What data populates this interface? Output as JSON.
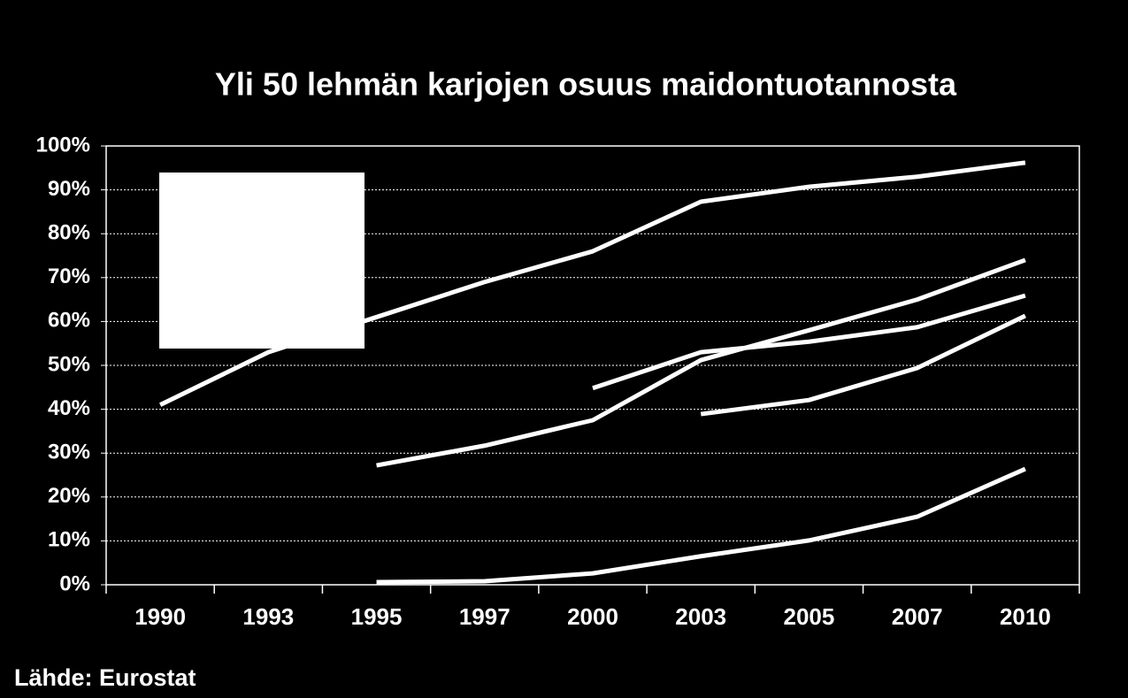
{
  "chart_data": {
    "type": "line",
    "title": "Yli 50 lehmän karjojen osuus maidontuotannosta",
    "source": "Lähde: Eurostat",
    "categories": [
      "1990",
      "1993",
      "1995",
      "1997",
      "2000",
      "2003",
      "2005",
      "2007",
      "2010"
    ],
    "series": [
      {
        "color": "#ffffff",
        "values": [
          41,
          53,
          61,
          69,
          76,
          87.3,
          90.7,
          93,
          96.2
        ]
      },
      {
        "color": "#ffffff",
        "values": [
          null,
          null,
          27.2,
          31.7,
          37.5,
          51.2,
          58,
          65,
          74
        ]
      },
      {
        "color": "#ffffff",
        "values": [
          null,
          null,
          null,
          null,
          44.8,
          53,
          55.4,
          58.7,
          65.9
        ]
      },
      {
        "color": "#ffffff",
        "values": [
          null,
          null,
          null,
          null,
          null,
          38.9,
          42.1,
          49.4,
          61.3
        ]
      },
      {
        "color": "#ffffff",
        "values": [
          null,
          null,
          0.6,
          0.8,
          2.6,
          6.5,
          10.1,
          15.5,
          26.4
        ]
      }
    ],
    "ylim": [
      0,
      100
    ],
    "yticks": [
      {
        "value": 0,
        "label": "0%"
      },
      {
        "value": 10,
        "label": "10%"
      },
      {
        "value": 20,
        "label": "20%"
      },
      {
        "value": 30,
        "label": "30%"
      },
      {
        "value": 40,
        "label": "40%"
      },
      {
        "value": 50,
        "label": "50%"
      },
      {
        "value": 60,
        "label": "60%"
      },
      {
        "value": 70,
        "label": "70%"
      },
      {
        "value": 80,
        "label": "80%"
      },
      {
        "value": 90,
        "label": "90%"
      },
      {
        "value": 100,
        "label": "100%"
      }
    ],
    "grid": true
  }
}
